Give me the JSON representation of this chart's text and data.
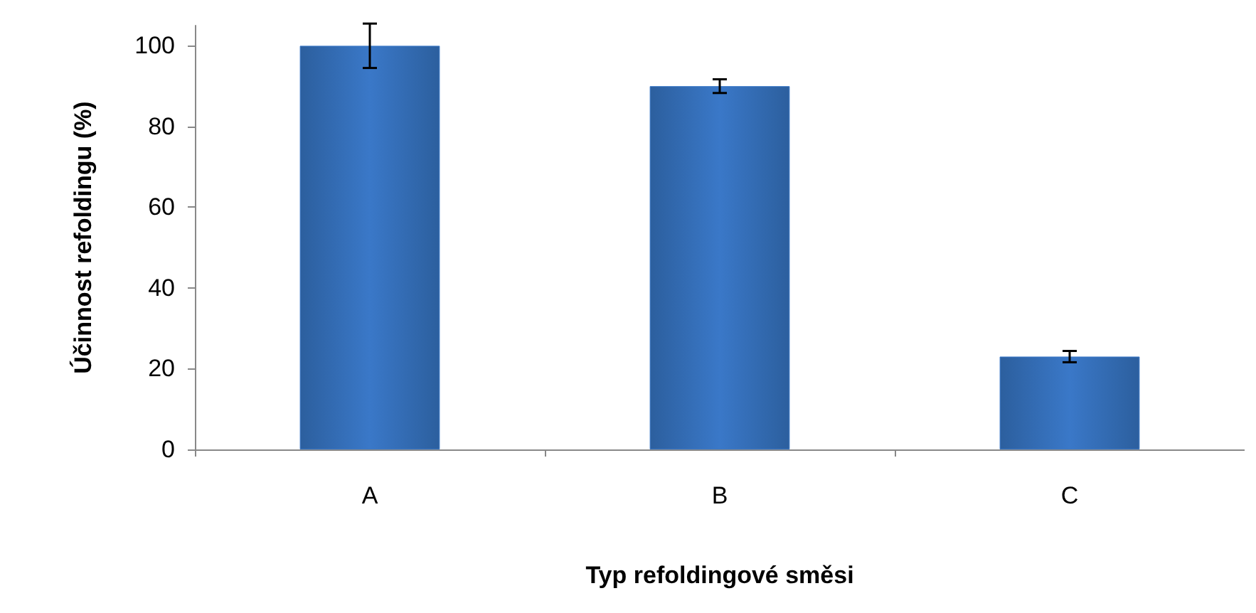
{
  "chart_data": {
    "type": "bar",
    "xlabel": "Typ refoldingové směsi",
    "ylabel": "Účinnost refoldingu (%)",
    "categories": [
      "A",
      "B",
      "C"
    ],
    "values": [
      100,
      90,
      23
    ],
    "errors": [
      5.5,
      1.7,
      1.4
    ],
    "color": "#3a78c8",
    "ylim": [
      0,
      105
    ],
    "yticks": [
      0,
      20,
      40,
      60,
      80,
      100
    ],
    "grid": false
  }
}
